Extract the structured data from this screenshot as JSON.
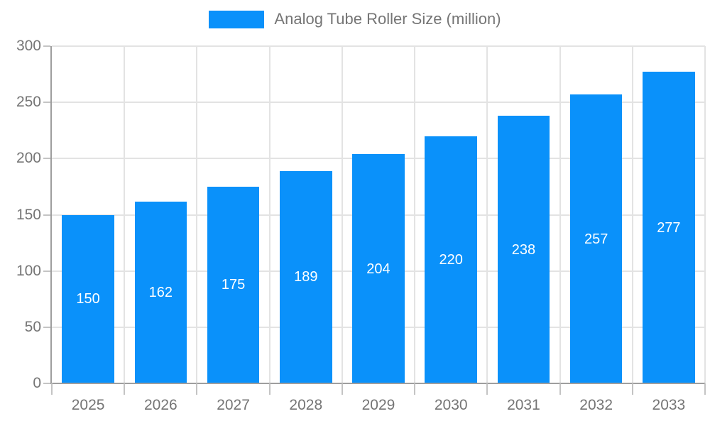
{
  "chart_data": {
    "type": "bar",
    "title": "Analog Tube Roller Size (million)",
    "categories": [
      "2025",
      "2026",
      "2027",
      "2028",
      "2029",
      "2030",
      "2031",
      "2032",
      "2033"
    ],
    "values": [
      150,
      162,
      175,
      189,
      204,
      220,
      238,
      257,
      277
    ],
    "xlabel": "",
    "ylabel": "",
    "ylim": [
      0,
      300
    ],
    "yticks": [
      0,
      50,
      100,
      150,
      200,
      250,
      300
    ],
    "grid": true,
    "legend_position": "top-center",
    "bar_value_labels_inside": true,
    "colors": {
      "bar": "#0a91fa",
      "axis_line": "#9e9e9e",
      "gridline": "#e3e3e3",
      "tick_mark": "#c4c4c4",
      "axis_text": "#757575",
      "legend_text": "#757575",
      "bar_label_text": "#ffffff",
      "background": "#ffffff"
    }
  }
}
